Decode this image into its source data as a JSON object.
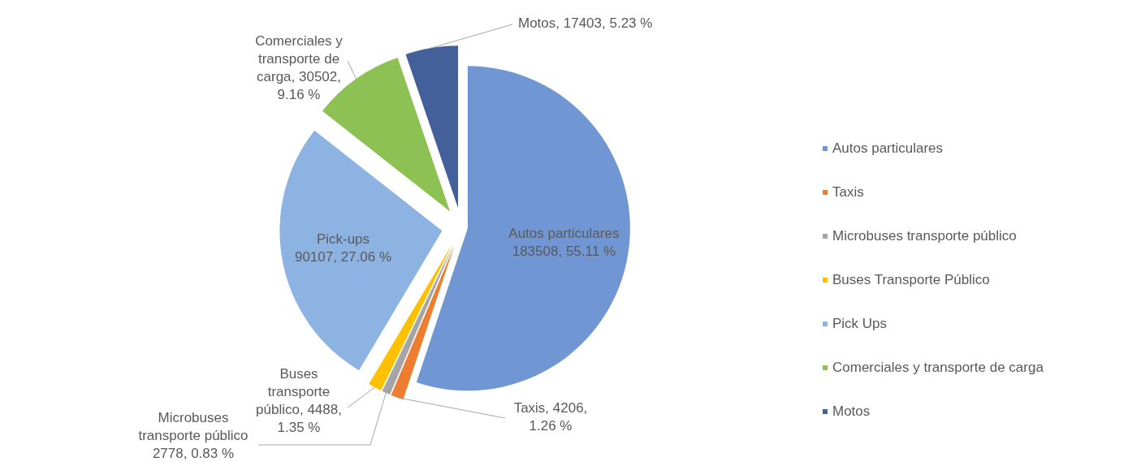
{
  "chart_data": {
    "type": "pie",
    "categories": [
      "Autos particulares",
      "Taxis",
      "Microbuses transporte público",
      "Buses Transporte Público",
      "Pick Ups",
      "Comerciales y transporte de carga",
      "Motos"
    ],
    "values": [
      183508,
      4206,
      2778,
      4488,
      90107,
      30502,
      17403
    ],
    "colors": [
      "#7097d3",
      "#ed7d31",
      "#a5a5a5",
      "#ffc000",
      "#8db3e2",
      "#8ec153",
      "#44609b"
    ],
    "value_labels": [
      "Autos particulares\n183508, 55.11 %",
      "Taxis, 4206,\n1.26 %",
      "Microbuses\ntransporte público\n2778, 0.83 %",
      "Buses\ntransporte\npúblico, 4488,\n1.35 %",
      "Pick-ups\n90107, 27.06 %",
      "Comerciales y\ntransporte de\ncarga, 30502,\n9.16 %",
      "Motos, 17403, 5.23 %"
    ],
    "legend": "right"
  }
}
